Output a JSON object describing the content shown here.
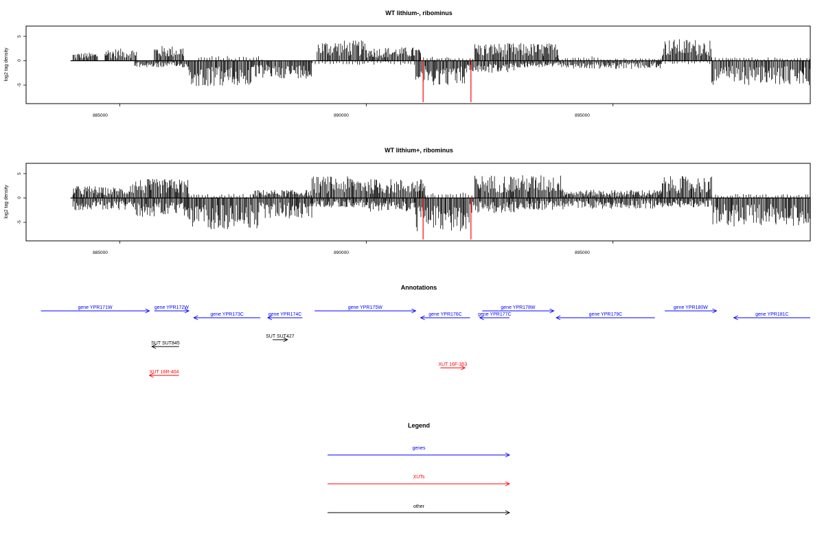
{
  "chart_data": [
    {
      "type": "bar",
      "title": "WT lithium-, ribominus",
      "ylabel": "log2 tag density",
      "xlim": [
        883100,
        899000
      ],
      "ylim": [
        -9,
        7
      ],
      "xticks": [
        "885000",
        "890000",
        "895000"
      ],
      "yticks": [
        "5",
        "0",
        "-5"
      ],
      "baseline_range": [
        884000,
        899000
      ],
      "positive_segments": [
        [
          884050,
          884550,
          1.2
        ],
        [
          884700,
          885350,
          1.8
        ],
        [
          885700,
          886300,
          2.2
        ],
        [
          886600,
          887900,
          0.7
        ],
        [
          889000,
          890000,
          3.0
        ],
        [
          890000,
          891100,
          2.0
        ],
        [
          891100,
          892200,
          0.6
        ],
        [
          892200,
          893900,
          2.6
        ],
        [
          893900,
          895000,
          0.7
        ],
        [
          895000,
          896000,
          0.4
        ],
        [
          896000,
          897000,
          3.2
        ],
        [
          897000,
          899000,
          0.5
        ]
      ],
      "negative_segments": [
        [
          885300,
          886400,
          -1.0
        ],
        [
          886400,
          887700,
          -3.8
        ],
        [
          887700,
          888900,
          -2.6
        ],
        [
          888900,
          891000,
          -0.6
        ],
        [
          891000,
          892000,
          -3.6
        ],
        [
          892000,
          893000,
          -1.8
        ],
        [
          893000,
          894200,
          -1.0
        ],
        [
          894200,
          896000,
          -1.2
        ],
        [
          896000,
          897000,
          -0.5
        ],
        [
          897000,
          899000,
          -3.6
        ]
      ],
      "highlight_x": [
        891150,
        892120
      ],
      "highlight_y": -8.5
    },
    {
      "type": "bar",
      "title": "WT lithium+, ribominus",
      "ylabel": "log2 tag density",
      "xlim": [
        883100,
        899000
      ],
      "ylim": [
        -9,
        7
      ],
      "xticks": [
        "885000",
        "890000",
        "895000"
      ],
      "yticks": [
        "5",
        "0",
        "-5"
      ],
      "baseline_range": [
        884000,
        899000
      ],
      "positive_segments": [
        [
          884050,
          884550,
          1.8
        ],
        [
          884550,
          885200,
          1.6
        ],
        [
          885200,
          886400,
          2.8
        ],
        [
          886400,
          887700,
          0.6
        ],
        [
          887700,
          888900,
          1.2
        ],
        [
          888900,
          890000,
          3.2
        ],
        [
          890000,
          891200,
          2.8
        ],
        [
          891200,
          892200,
          0.8
        ],
        [
          892200,
          894000,
          3.4
        ],
        [
          894000,
          896000,
          1.2
        ],
        [
          896000,
          897000,
          3.2
        ],
        [
          897000,
          899000,
          0.6
        ]
      ],
      "negative_segments": [
        [
          884050,
          885300,
          -1.8
        ],
        [
          885300,
          886400,
          -2.8
        ],
        [
          886400,
          887800,
          -4.6
        ],
        [
          887800,
          888900,
          -3.0
        ],
        [
          888900,
          890000,
          -1.4
        ],
        [
          890000,
          891000,
          -2.0
        ],
        [
          891000,
          892100,
          -5.0
        ],
        [
          892100,
          893000,
          -2.2
        ],
        [
          893000,
          894000,
          -1.8
        ],
        [
          894000,
          896000,
          -1.6
        ],
        [
          896000,
          897000,
          -1.4
        ],
        [
          897000,
          899000,
          -4.2
        ]
      ],
      "highlight_x": [
        891150,
        892120
      ],
      "highlight_y": -8.5
    }
  ],
  "annotations": {
    "title": "Annotations",
    "features": [
      {
        "label": "gene YPR171W",
        "start": 883400,
        "end": 885600,
        "strand": "+",
        "row": 1,
        "kind": "gene"
      },
      {
        "label": "gene YPR172W",
        "start": 885700,
        "end": 886400,
        "strand": "+",
        "row": 1,
        "kind": "gene"
      },
      {
        "label": "gene YPR173C",
        "start": 886500,
        "end": 887850,
        "strand": "-",
        "row": 2,
        "kind": "gene"
      },
      {
        "label": "gene YPR174C",
        "start": 888000,
        "end": 888700,
        "strand": "-",
        "row": 2,
        "kind": "gene"
      },
      {
        "label": "gene YPR175W",
        "start": 888950,
        "end": 891000,
        "strand": "+",
        "row": 1,
        "kind": "gene"
      },
      {
        "label": "gene YPR176C",
        "start": 891100,
        "end": 892100,
        "strand": "-",
        "row": 2,
        "kind": "gene"
      },
      {
        "label": "gene YPR177C",
        "start": 892300,
        "end": 892900,
        "strand": "-",
        "row": 2,
        "kind": "gene"
      },
      {
        "label": "gene YPR178W",
        "start": 892350,
        "end": 893800,
        "strand": "+",
        "row": 1,
        "kind": "gene"
      },
      {
        "label": "gene YPR179C",
        "start": 893850,
        "end": 895850,
        "strand": "-",
        "row": 2,
        "kind": "gene"
      },
      {
        "label": "gene YPR180W",
        "start": 896050,
        "end": 897100,
        "strand": "+",
        "row": 1,
        "kind": "gene"
      },
      {
        "label": "gene YPR181C",
        "start": 897450,
        "end": 899000,
        "strand": "-",
        "row": 2,
        "kind": "gene"
      },
      {
        "label": "SUT SUT845",
        "start": 885650,
        "end": 886200,
        "strand": "-",
        "row": 3,
        "kind": "other"
      },
      {
        "label": "SUT SUT427",
        "start": 888100,
        "end": 888400,
        "strand": "+",
        "row": 4,
        "kind": "other"
      },
      {
        "label": "XUT 16F-353",
        "start": 891500,
        "end": 892000,
        "strand": "+",
        "row": 5,
        "kind": "xut"
      },
      {
        "label": "XUT 16R-404",
        "start": 885600,
        "end": 886200,
        "strand": "-",
        "row": 6,
        "kind": "xut"
      }
    ]
  },
  "legend": {
    "title": "Legend",
    "items": [
      {
        "label": "genes",
        "color": "#0000ff"
      },
      {
        "label": "XUTs",
        "color": "#ff0000"
      },
      {
        "label": "other",
        "color": "#000000"
      }
    ]
  },
  "colors": {
    "gene": "#0000ff",
    "xut": "#ff0000",
    "other": "#000000",
    "highlight": "#ff0000",
    "signal": "#000000"
  }
}
